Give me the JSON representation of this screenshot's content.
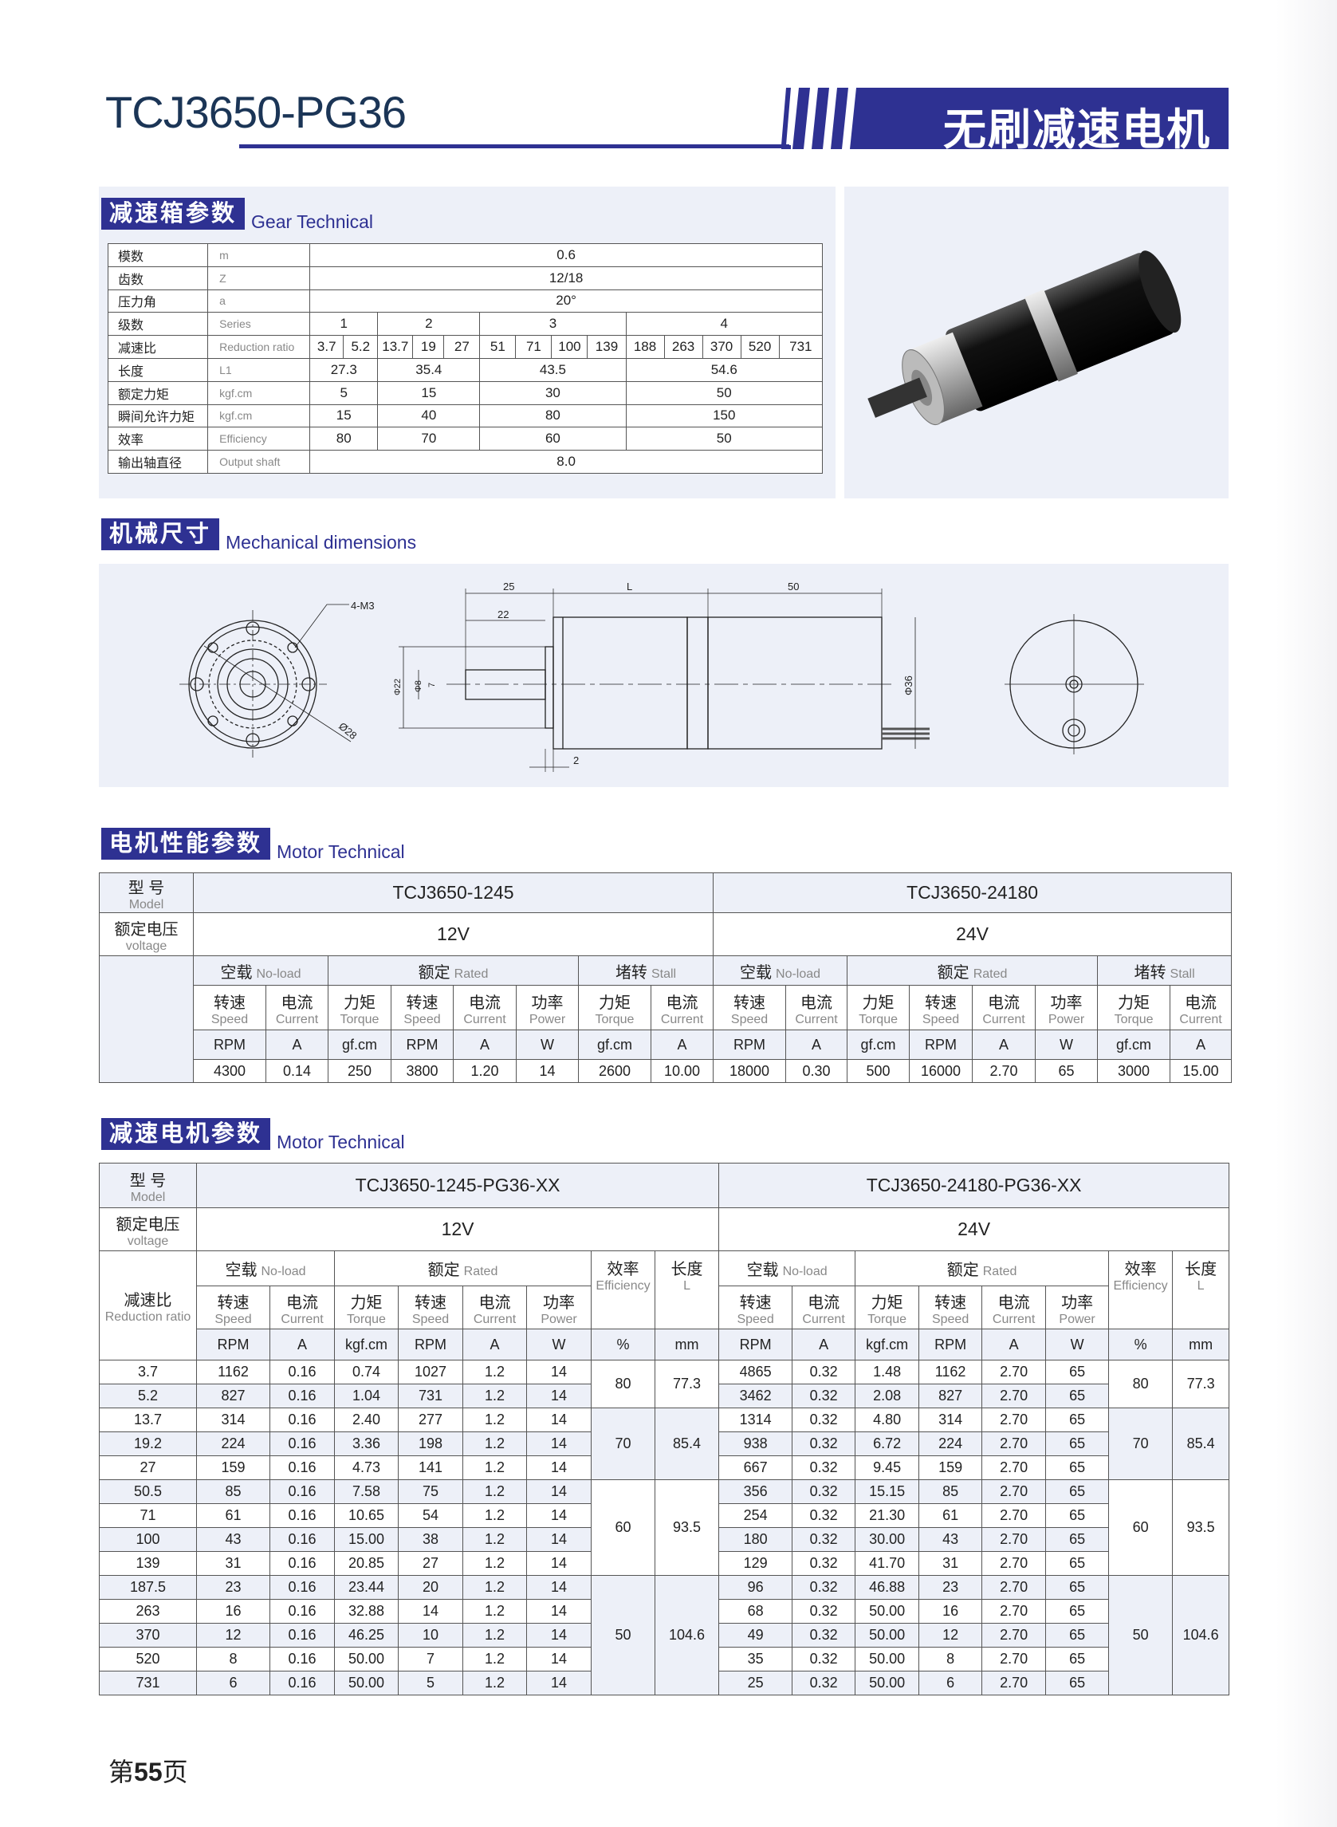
{
  "header": {
    "title": "TCJ3650-PG36",
    "banner": "无刷减速电机",
    "colors": {
      "brand": "#2e3192",
      "title": "#1b3556",
      "panel": "#edf0f8"
    }
  },
  "gear": {
    "heading_cn": "减速箱参数",
    "heading_en": "Gear Technical",
    "module": {
      "label": "模数",
      "unit": "m",
      "value": "0.6"
    },
    "teeth": {
      "label": "齿数",
      "unit": "Z",
      "value": "12/18"
    },
    "pressure_angle": {
      "label": "压力角",
      "unit": "a",
      "value": "20°"
    },
    "series": {
      "label": "级数",
      "unit": "Series",
      "values": [
        "1",
        "2",
        "3",
        "4"
      ]
    },
    "ratio": {
      "label": "减速比",
      "unit": "Reduction ratio",
      "values": [
        [
          "3.7",
          "5.2"
        ],
        [
          "13.7",
          "19",
          "27"
        ],
        [
          "51",
          "71",
          "100",
          "139"
        ],
        [
          "188",
          "263",
          "370",
          "520",
          "731"
        ]
      ]
    },
    "length": {
      "label": "长度",
      "unit": "L1",
      "values": [
        "27.3",
        "35.4",
        "43.5",
        "54.6"
      ]
    },
    "rated_torque": {
      "label": "额定力矩",
      "unit": "kgf.cm",
      "values": [
        "5",
        "15",
        "30",
        "50"
      ]
    },
    "max_torque": {
      "label": "瞬间允许力矩",
      "unit": "kgf.cm",
      "values": [
        "15",
        "40",
        "80",
        "150"
      ]
    },
    "efficiency": {
      "label": "效率",
      "unit": "Efficiency",
      "values": [
        "80",
        "70",
        "60",
        "50"
      ]
    },
    "shaft": {
      "label": "输出轴直径",
      "unit": "Output shaft",
      "value": "8.0"
    }
  },
  "mechanical": {
    "heading_cn": "机械尺寸",
    "heading_en": "Mechanical dimensions",
    "dims": {
      "holes": "4-M3",
      "pcd": "Ø28",
      "d25": "25",
      "dL": "L",
      "d50": "50",
      "d22": "22",
      "d2": "2",
      "phi22": "Φ22",
      "phi8": "Φ8",
      "d7": "7",
      "phi36": "Φ36"
    }
  },
  "motor": {
    "heading_cn": "电机性能参数",
    "heading_en": "Motor Technical",
    "model_label": "型 号",
    "model_label_en": "Model",
    "voltage_label": "额定电压",
    "voltage_label_en": "voltage",
    "groups": [
      {
        "cn": "空载",
        "en": "No-load"
      },
      {
        "cn": "额定",
        "en": "Rated"
      },
      {
        "cn": "堵转",
        "en": "Stall"
      }
    ],
    "columns": [
      {
        "cn": "转速",
        "en": "Speed",
        "unit": "RPM"
      },
      {
        "cn": "电流",
        "en": "Current",
        "unit": "A"
      },
      {
        "cn": "力矩",
        "en": "Torque",
        "unit": "gf.cm"
      },
      {
        "cn": "转速",
        "en": "Speed",
        "unit": "RPM"
      },
      {
        "cn": "电流",
        "en": "Current",
        "unit": "A"
      },
      {
        "cn": "功率",
        "en": "Power",
        "unit": "W"
      },
      {
        "cn": "力矩",
        "en": "Torque",
        "unit": "gf.cm"
      },
      {
        "cn": "电流",
        "en": "Current",
        "unit": "A"
      }
    ],
    "models": [
      {
        "name": "TCJ3650-1245",
        "voltage": "12V",
        "values": [
          "4300",
          "0.14",
          "250",
          "3800",
          "1.20",
          "14",
          "2600",
          "10.00"
        ]
      },
      {
        "name": "TCJ3650-24180",
        "voltage": "24V",
        "values": [
          "18000",
          "0.30",
          "500",
          "16000",
          "2.70",
          "65",
          "3000",
          "15.00"
        ]
      }
    ]
  },
  "gearmotor": {
    "heading_cn": "减速电机参数",
    "heading_en": "Motor Technical",
    "model_label": "型 号",
    "model_label_en": "Model",
    "voltage_label": "额定电压",
    "voltage_label_en": "voltage",
    "ratio_label": "减速比",
    "ratio_label_en": "Reduction ratio",
    "groups": [
      {
        "cn": "空载",
        "en": "No-load"
      },
      {
        "cn": "额定",
        "en": "Rated"
      }
    ],
    "efficiency": {
      "cn": "效率",
      "en": "Efficiency",
      "unit": "%"
    },
    "length": {
      "cn": "长度",
      "en": "L",
      "unit": "mm"
    },
    "columns": [
      {
        "cn": "转速",
        "en": "Speed",
        "unit": "RPM"
      },
      {
        "cn": "电流",
        "en": "Current",
        "unit": "A"
      },
      {
        "cn": "力矩",
        "en": "Torque",
        "unit": "kgf.cm"
      },
      {
        "cn": "转速",
        "en": "Speed",
        "unit": "RPM"
      },
      {
        "cn": "电流",
        "en": "Current",
        "unit": "A"
      },
      {
        "cn": "功率",
        "en": "Power",
        "unit": "W"
      }
    ],
    "ratios": [
      "3.7",
      "5.2",
      "13.7",
      "19.2",
      "27",
      "50.5",
      "71",
      "100",
      "139",
      "187.5",
      "263",
      "370",
      "520",
      "731"
    ],
    "stages": [
      {
        "rows": 2,
        "efficiency": "80",
        "length": "77.3"
      },
      {
        "rows": 3,
        "efficiency": "70",
        "length": "85.4"
      },
      {
        "rows": 4,
        "efficiency": "60",
        "length": "93.5"
      },
      {
        "rows": 5,
        "efficiency": "50",
        "length": "104.6"
      }
    ],
    "models": [
      {
        "name": "TCJ3650-1245-PG36-XX",
        "voltage": "12V",
        "rows": [
          [
            "1162",
            "0.16",
            "0.74",
            "1027",
            "1.2",
            "14"
          ],
          [
            "827",
            "0.16",
            "1.04",
            "731",
            "1.2",
            "14"
          ],
          [
            "314",
            "0.16",
            "2.40",
            "277",
            "1.2",
            "14"
          ],
          [
            "224",
            "0.16",
            "3.36",
            "198",
            "1.2",
            "14"
          ],
          [
            "159",
            "0.16",
            "4.73",
            "141",
            "1.2",
            "14"
          ],
          [
            "85",
            "0.16",
            "7.58",
            "75",
            "1.2",
            "14"
          ],
          [
            "61",
            "0.16",
            "10.65",
            "54",
            "1.2",
            "14"
          ],
          [
            "43",
            "0.16",
            "15.00",
            "38",
            "1.2",
            "14"
          ],
          [
            "31",
            "0.16",
            "20.85",
            "27",
            "1.2",
            "14"
          ],
          [
            "23",
            "0.16",
            "23.44",
            "20",
            "1.2",
            "14"
          ],
          [
            "16",
            "0.16",
            "32.88",
            "14",
            "1.2",
            "14"
          ],
          [
            "12",
            "0.16",
            "46.25",
            "10",
            "1.2",
            "14"
          ],
          [
            "8",
            "0.16",
            "50.00",
            "7",
            "1.2",
            "14"
          ],
          [
            "6",
            "0.16",
            "50.00",
            "5",
            "1.2",
            "14"
          ]
        ]
      },
      {
        "name": "TCJ3650-24180-PG36-XX",
        "voltage": "24V",
        "rows": [
          [
            "4865",
            "0.32",
            "1.48",
            "1162",
            "2.70",
            "65"
          ],
          [
            "3462",
            "0.32",
            "2.08",
            "827",
            "2.70",
            "65"
          ],
          [
            "1314",
            "0.32",
            "4.80",
            "314",
            "2.70",
            "65"
          ],
          [
            "938",
            "0.32",
            "6.72",
            "224",
            "2.70",
            "65"
          ],
          [
            "667",
            "0.32",
            "9.45",
            "159",
            "2.70",
            "65"
          ],
          [
            "356",
            "0.32",
            "15.15",
            "85",
            "2.70",
            "65"
          ],
          [
            "254",
            "0.32",
            "21.30",
            "61",
            "2.70",
            "65"
          ],
          [
            "180",
            "0.32",
            "30.00",
            "43",
            "2.70",
            "65"
          ],
          [
            "129",
            "0.32",
            "41.70",
            "31",
            "2.70",
            "65"
          ],
          [
            "96",
            "0.32",
            "46.88",
            "23",
            "2.70",
            "65"
          ],
          [
            "68",
            "0.32",
            "50.00",
            "16",
            "2.70",
            "65"
          ],
          [
            "49",
            "0.32",
            "50.00",
            "12",
            "2.70",
            "65"
          ],
          [
            "35",
            "0.32",
            "50.00",
            "8",
            "2.70",
            "65"
          ],
          [
            "25",
            "0.32",
            "50.00",
            "6",
            "2.70",
            "65"
          ]
        ]
      }
    ]
  },
  "footer": {
    "prefix": "第",
    "page": "55",
    "suffix": "页"
  }
}
